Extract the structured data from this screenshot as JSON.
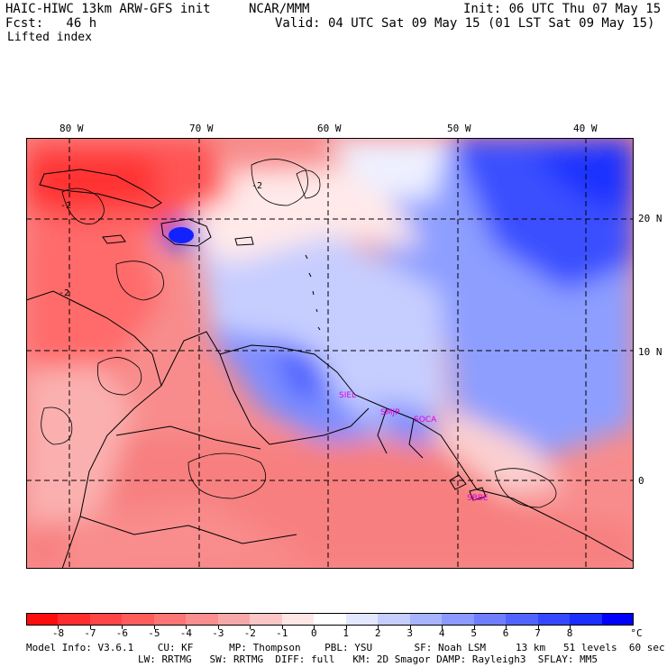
{
  "header": {
    "model": "HAIC-HIWC 13km ARW-GFS init",
    "org": "NCAR/MMM",
    "init": "Init: 06 UTC Thu 07 May 15",
    "fcst": "Fcst:   46 h",
    "valid": "Valid: 04 UTC Sat 09 May 15 (01 LST Sat 09 May 15)",
    "field": "Lifted index"
  },
  "map": {
    "lon_labels": [
      "80 W",
      "70 W",
      "60 W",
      "50 W",
      "40 W"
    ],
    "lat_labels": [
      "20 N",
      "10 N",
      "0"
    ],
    "contour_labels": [
      "-2",
      "-2",
      "-2"
    ],
    "stations": [
      "SIEL",
      "SMJP",
      "SOCA",
      "SBBE"
    ],
    "colors": {
      "station": "#e000e0",
      "grid": "#000000",
      "coast": "#000000"
    }
  },
  "colorbar": {
    "labels": [
      "-8",
      "-7",
      "-6",
      "-5",
      "-4",
      "-3",
      "-2",
      "-1",
      "0",
      "1",
      "2",
      "3",
      "4",
      "5",
      "6",
      "7",
      "8"
    ],
    "unit": "°C",
    "colors": [
      "#ff0d0d",
      "#ff2d2d",
      "#ff4545",
      "#ff5c5c",
      "#ff7474",
      "#fb8e8e",
      "#f7a8a8",
      "#fbc6c6",
      "#ffe6e6",
      "#ffffff",
      "#e3e8ff",
      "#c6ceff",
      "#a9b4ff",
      "#8c99ff",
      "#6e7eff",
      "#5164ff",
      "#3449ff",
      "#1b2fff",
      "#0000ff"
    ]
  },
  "footer": {
    "line1": "Model Info: V3.6.1    CU: KF      MP: Thompson    PBL: YSU       SF: Noah LSM     13 km   51 levels  60 sec",
    "line2": "LW: RRTMG   SW: RRTMG  DIFF: full   KM: 2D Smagor DAMP: Rayleigh3  SFLAY: MM5"
  }
}
